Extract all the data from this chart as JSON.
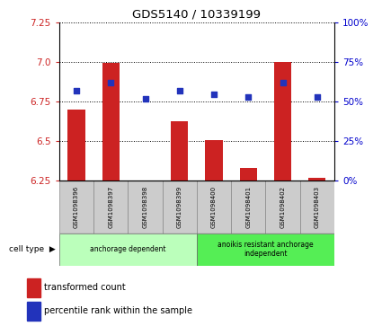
{
  "title": "GDS5140 / 10339199",
  "samples": [
    "GSM1098396",
    "GSM1098397",
    "GSM1098398",
    "GSM1098399",
    "GSM1098400",
    "GSM1098401",
    "GSM1098402",
    "GSM1098403"
  ],
  "transformed_count": [
    6.7,
    6.995,
    6.253,
    6.63,
    6.51,
    6.335,
    7.0,
    6.268
  ],
  "percentile_rank": [
    57,
    62,
    52,
    57,
    55,
    53,
    62,
    53
  ],
  "ylim_left": [
    6.25,
    7.25
  ],
  "yticks_left": [
    6.25,
    6.5,
    6.75,
    7.0,
    7.25
  ],
  "ylim_right": [
    0,
    100
  ],
  "yticks_right": [
    0,
    25,
    50,
    75,
    100
  ],
  "ytick_labels_right": [
    "0%",
    "25%",
    "50%",
    "75%",
    "100%"
  ],
  "bar_color": "#cc2222",
  "dot_color": "#2233bb",
  "grid_color": "#000000",
  "cell_type_groups": [
    {
      "label": "anchorage dependent",
      "indices": [
        0,
        1,
        2,
        3
      ],
      "color": "#bbffbb"
    },
    {
      "label": "anoikis resistant anchorage\nindependent",
      "indices": [
        4,
        5,
        6,
        7
      ],
      "color": "#55ee55"
    }
  ],
  "ylabel_left_color": "#cc2222",
  "ylabel_right_color": "#0000cc",
  "background_plot": "#ffffff",
  "sample_box_color": "#cccccc",
  "legend_red_label": "transformed count",
  "legend_blue_label": "percentile rank within the sample",
  "cell_type_label": "cell type",
  "bar_width": 0.5
}
